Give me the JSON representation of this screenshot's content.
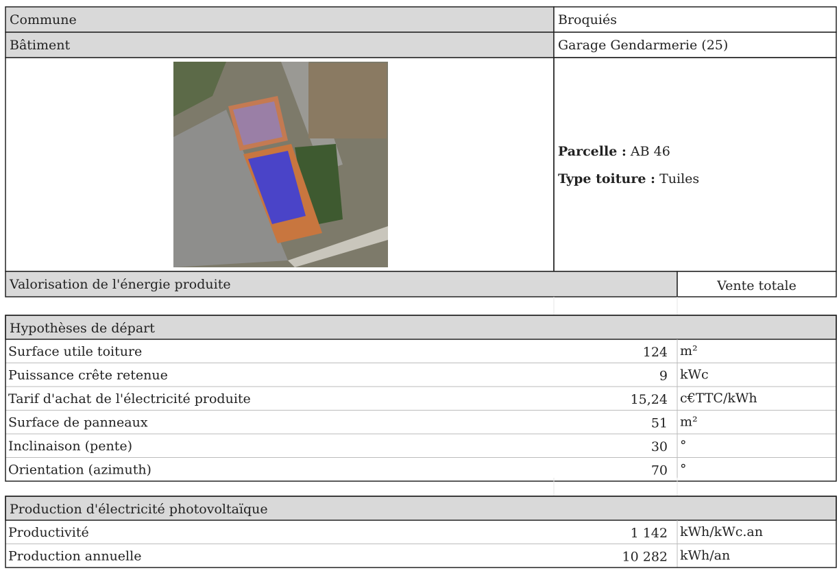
{
  "header": {
    "rows": [
      {
        "label": "Commune",
        "value": "Broquiés"
      },
      {
        "label": "Bâtiment",
        "value": "Garage Gendarmerie (25)"
      }
    ]
  },
  "details": [
    {
      "label": "Parcelle :",
      "value": "AB 46"
    },
    {
      "label": "Type toiture :",
      "value": "Tuiles"
    }
  ],
  "valorisation": {
    "label": "Valorisation de l'énergie produite",
    "value": "Vente totale"
  },
  "sections": [
    {
      "title": "Hypothèses de départ",
      "rows": [
        [
          "Surface utile toiture",
          "124",
          "m²"
        ],
        [
          "Puissance crête retenue",
          "9",
          "kWc"
        ],
        [
          "Tarif d'achat de l'électricité produite",
          "15,24",
          "c€TTC/kWh"
        ],
        [
          "Surface de panneaux",
          "51",
          "m²"
        ],
        [
          "Inclinaison (pente)",
          "30",
          "°"
        ],
        [
          "Orientation (azimuth)",
          "70",
          "°"
        ]
      ]
    },
    {
      "title": "Production d'électricité photovoltaïque",
      "rows": [
        [
          "Productivité",
          "1 142",
          "kWh/kWc.an"
        ],
        [
          "Production annuelle",
          "10 282",
          "kWh/an"
        ]
      ]
    }
  ]
}
